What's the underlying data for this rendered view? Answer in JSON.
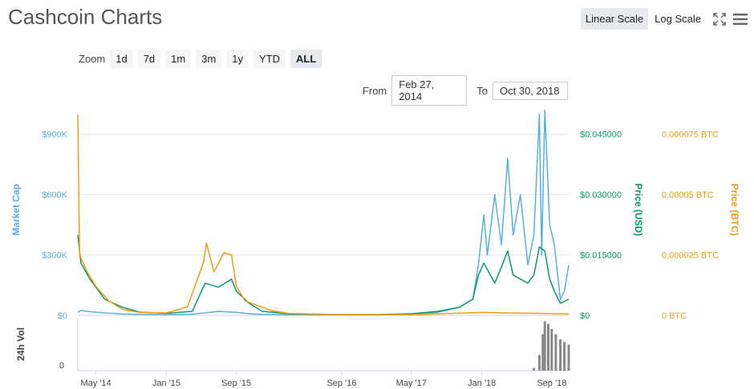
{
  "title": "Cashcoin Charts",
  "scale_buttons": {
    "linear": "Linear Scale",
    "log": "Log Scale"
  },
  "icons": {
    "fullscreen": "fullscreen-icon",
    "menu": "menu-icon"
  },
  "zoom": {
    "label": "Zoom",
    "buttons": [
      "1d",
      "7d",
      "1m",
      "3m",
      "1y",
      "YTD",
      "ALL"
    ],
    "active": "ALL"
  },
  "range": {
    "from_label": "From",
    "from_value": "Feb 27, 2014",
    "to_label": "To",
    "to_value": "Oct 30, 2018"
  },
  "colors": {
    "market_cap": "#5aaee0",
    "price_usd": "#0a9a6a",
    "price_btc": "#f39c12",
    "volume": "#888888"
  },
  "chart_data": {
    "type": "line",
    "x_tick_labels": [
      "May '14",
      "Jan '15",
      "Sep '15",
      "Sep '16",
      "May '17",
      "Jan '18",
      "Sep '18"
    ],
    "x_tick_dates": [
      "2014-05-01",
      "2015-01-01",
      "2015-09-01",
      "2016-09-01",
      "2017-05-01",
      "2018-01-01",
      "2018-09-01"
    ],
    "x_range": [
      "2014-02-27",
      "2018-10-30"
    ],
    "axes": {
      "market_cap": {
        "label": "Market Cap",
        "ticks": [
          "$0",
          "$300K",
          "$600K",
          "$900K"
        ],
        "tick_values": [
          0,
          300000,
          600000,
          900000
        ],
        "range": [
          0,
          1050000
        ]
      },
      "price_usd": {
        "label": "Price (USD)",
        "ticks": [
          "$0",
          "$0.015000",
          "$0.030000",
          "$0.045000"
        ],
        "tick_values": [
          0,
          0.015,
          0.03,
          0.045
        ],
        "range": [
          0,
          0.0525
        ]
      },
      "price_btc": {
        "label": "Price (BTC)",
        "ticks": [
          "0 BTC",
          "0.000025 BTC",
          "0.00005 BTC",
          "0.000075 BTC"
        ],
        "tick_values": [
          0,
          2.5e-05,
          5e-05,
          7.5e-05
        ],
        "range": [
          0,
          8.75e-05
        ]
      },
      "volume": {
        "label": "24h Vol",
        "ticks": [
          "0"
        ]
      }
    },
    "grid": true,
    "series": [
      {
        "name": "Market Cap",
        "axis": "market_cap",
        "points": [
          [
            "2014-02-27",
            15000
          ],
          [
            "2014-03-10",
            25000
          ],
          [
            "2014-04-10",
            18000
          ],
          [
            "2014-06-01",
            12000
          ],
          [
            "2014-08-01",
            7000
          ],
          [
            "2014-10-01",
            5000
          ],
          [
            "2015-01-01",
            4000
          ],
          [
            "2015-04-01",
            6000
          ],
          [
            "2015-05-15",
            12000
          ],
          [
            "2015-07-01",
            20000
          ],
          [
            "2015-09-01",
            15000
          ],
          [
            "2015-10-15",
            8000
          ],
          [
            "2015-12-01",
            5000
          ],
          [
            "2016-03-01",
            3000
          ],
          [
            "2016-09-01",
            2000
          ],
          [
            "2017-01-01",
            2000
          ],
          [
            "2017-05-01",
            5000
          ],
          [
            "2017-08-01",
            15000
          ],
          [
            "2017-10-15",
            40000
          ],
          [
            "2017-12-01",
            80000
          ],
          [
            "2017-12-20",
            250000
          ],
          [
            "2018-01-08",
            500000
          ],
          [
            "2018-01-20",
            300000
          ],
          [
            "2018-02-15",
            600000
          ],
          [
            "2018-03-10",
            350000
          ],
          [
            "2018-04-01",
            780000
          ],
          [
            "2018-04-20",
            400000
          ],
          [
            "2018-05-15",
            600000
          ],
          [
            "2018-06-10",
            250000
          ],
          [
            "2018-07-01",
            400000
          ],
          [
            "2018-07-20",
            1000000
          ],
          [
            "2018-07-28",
            300000
          ],
          [
            "2018-08-08",
            1020000
          ],
          [
            "2018-08-25",
            450000
          ],
          [
            "2018-09-10",
            350000
          ],
          [
            "2018-10-01",
            80000
          ],
          [
            "2018-10-15",
            120000
          ],
          [
            "2018-10-30",
            250000
          ]
        ]
      },
      {
        "name": "Price (USD)",
        "axis": "price_usd",
        "points": [
          [
            "2014-02-27",
            0.02
          ],
          [
            "2014-03-10",
            0.013
          ],
          [
            "2014-04-10",
            0.009
          ],
          [
            "2014-06-01",
            0.004
          ],
          [
            "2014-08-01",
            0.002
          ],
          [
            "2014-10-01",
            0.0008
          ],
          [
            "2015-01-01",
            0.0005
          ],
          [
            "2015-04-01",
            0.001
          ],
          [
            "2015-05-15",
            0.008
          ],
          [
            "2015-07-01",
            0.007
          ],
          [
            "2015-08-15",
            0.009
          ],
          [
            "2015-09-01",
            0.006
          ],
          [
            "2015-10-15",
            0.003
          ],
          [
            "2015-12-01",
            0.001
          ],
          [
            "2016-03-01",
            0.0004
          ],
          [
            "2016-09-01",
            0.0002
          ],
          [
            "2017-01-01",
            0.0002
          ],
          [
            "2017-05-01",
            0.0004
          ],
          [
            "2017-08-01",
            0.001
          ],
          [
            "2017-10-15",
            0.002
          ],
          [
            "2017-12-01",
            0.004
          ],
          [
            "2017-12-20",
            0.01
          ],
          [
            "2018-01-08",
            0.013
          ],
          [
            "2018-02-15",
            0.008
          ],
          [
            "2018-03-10",
            0.012
          ],
          [
            "2018-04-01",
            0.016
          ],
          [
            "2018-04-20",
            0.01
          ],
          [
            "2018-05-15",
            0.009
          ],
          [
            "2018-06-10",
            0.008
          ],
          [
            "2018-07-01",
            0.01
          ],
          [
            "2018-07-20",
            0.017
          ],
          [
            "2018-08-08",
            0.016
          ],
          [
            "2018-08-25",
            0.009
          ],
          [
            "2018-09-10",
            0.006
          ],
          [
            "2018-10-01",
            0.003
          ],
          [
            "2018-10-30",
            0.004
          ]
        ]
      },
      {
        "name": "Price (BTC)",
        "axis": "price_btc",
        "points": [
          [
            "2014-02-27",
            8.3e-05
          ],
          [
            "2014-03-05",
            2.5e-05
          ],
          [
            "2014-04-01",
            1.8e-05
          ],
          [
            "2014-05-01",
            1.2e-05
          ],
          [
            "2014-06-15",
            6e-06
          ],
          [
            "2014-08-01",
            2.5e-06
          ],
          [
            "2014-10-01",
            1.2e-06
          ],
          [
            "2015-01-01",
            1e-06
          ],
          [
            "2015-03-15",
            3.5e-06
          ],
          [
            "2015-05-10",
            2.2e-05
          ],
          [
            "2015-05-20",
            3e-05
          ],
          [
            "2015-06-15",
            1.8e-05
          ],
          [
            "2015-07-20",
            2.6e-05
          ],
          [
            "2015-08-15",
            2.5e-05
          ],
          [
            "2015-09-01",
            1.2e-05
          ],
          [
            "2015-10-01",
            6e-06
          ],
          [
            "2015-11-15",
            4e-06
          ],
          [
            "2016-01-01",
            2e-06
          ],
          [
            "2016-03-01",
            8e-07
          ],
          [
            "2016-09-01",
            3e-07
          ],
          [
            "2017-05-01",
            3e-07
          ],
          [
            "2018-01-01",
            1.2e-06
          ],
          [
            "2018-06-01",
            9e-07
          ],
          [
            "2018-10-30",
            6e-07
          ]
        ]
      }
    ],
    "volume": [
      [
        "2018-07-01",
        0.05
      ],
      [
        "2018-07-20",
        0.3
      ],
      [
        "2018-08-01",
        0.7
      ],
      [
        "2018-08-08",
        0.95
      ],
      [
        "2018-08-20",
        0.9
      ],
      [
        "2018-09-01",
        0.8
      ],
      [
        "2018-09-15",
        0.7
      ],
      [
        "2018-10-01",
        0.6
      ],
      [
        "2018-10-15",
        0.55
      ],
      [
        "2018-10-30",
        0.5
      ]
    ]
  }
}
